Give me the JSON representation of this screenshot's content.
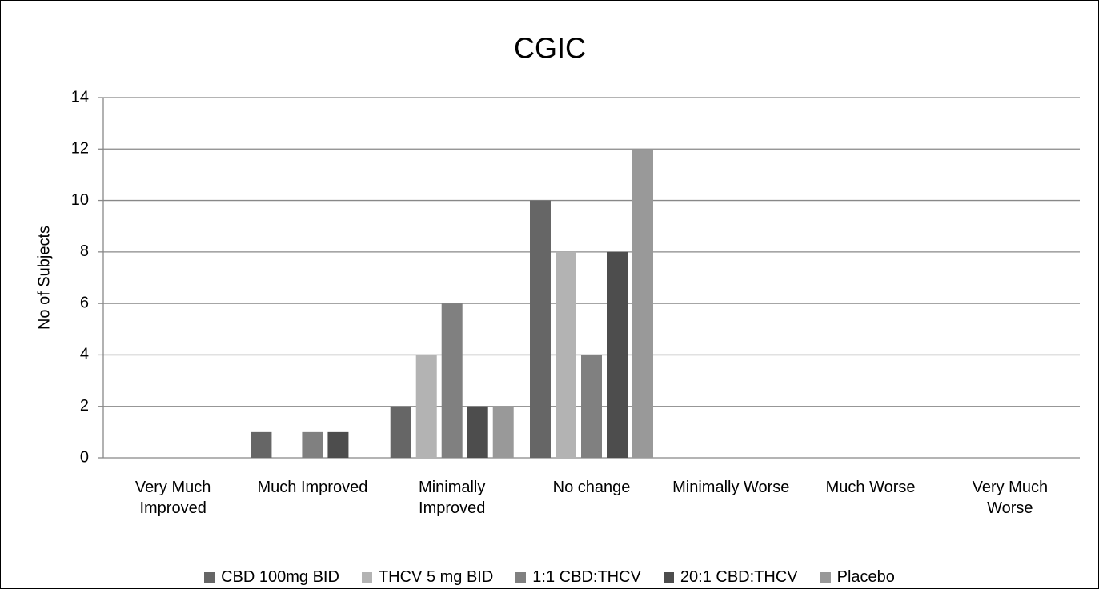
{
  "chart_data": {
    "type": "bar",
    "title": "CGIC",
    "y_label": "No of Subjects",
    "categories": [
      "Very Much Improved",
      "Much Improved",
      "Minimally Improved",
      "No change",
      "Minimally Worse",
      "Much Worse",
      "Very Much Worse"
    ],
    "series": [
      {
        "name": "CBD 100mg BID",
        "color": "#666666",
        "values": [
          0,
          1,
          2,
          10,
          0,
          0,
          0
        ]
      },
      {
        "name": "THCV 5 mg BID",
        "color": "#b3b3b3",
        "values": [
          0,
          0,
          4,
          8,
          0,
          0,
          0
        ]
      },
      {
        "name": "1:1 CBD:THCV",
        "color": "#808080",
        "values": [
          0,
          1,
          6,
          4,
          0,
          0,
          0
        ]
      },
      {
        "name": "20:1 CBD:THCV",
        "color": "#4d4d4d",
        "values": [
          0,
          1,
          2,
          8,
          0,
          0,
          0
        ]
      },
      {
        "name": "Placebo",
        "color": "#999999",
        "values": [
          0,
          0,
          2,
          12,
          0,
          0,
          0
        ]
      }
    ],
    "ylim": [
      0,
      14
    ],
    "yticks": [
      0,
      2,
      4,
      6,
      8,
      10,
      12,
      14
    ],
    "grid": true,
    "legend": "bottom"
  }
}
